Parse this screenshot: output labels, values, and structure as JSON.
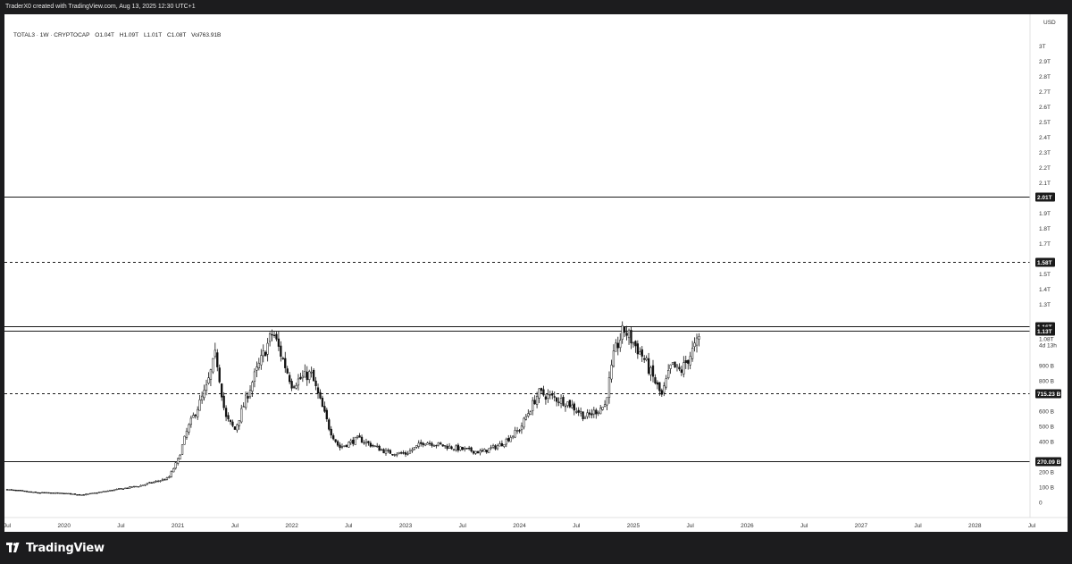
{
  "header": {
    "text": "TraderX0 created with TradingView.com, Aug 13, 2025 12:30 UTC+1"
  },
  "legend": {
    "symbol": "TOTAL3 · 1W · CRYPTOCAP",
    "open": "O1.04T",
    "high": "H1.09T",
    "low": "L1.01T",
    "close": "C1.08T",
    "volume": "Vol763.91B"
  },
  "price_axis": {
    "currency": "USD"
  },
  "footer": {
    "brand": "TradingView"
  },
  "chart_data": {
    "type": "candlestick",
    "symbol": "TOTAL3",
    "timeframe": "1W",
    "x_tick_labels": [
      "Jul",
      "2020",
      "Jul",
      "2021",
      "Jul",
      "2022",
      "Jul",
      "2023",
      "Jul",
      "2024",
      "Jul",
      "2025",
      "Jul",
      "2026",
      "Jul",
      "2027",
      "Jul",
      "2028",
      "Jul"
    ],
    "y_tick_labels": [
      "0",
      "100 B",
      "200 B",
      "400 B",
      "500 B",
      "600 B",
      "800 B",
      "900 B",
      "1.3T",
      "1.4T",
      "1.5T",
      "1.7T",
      "1.8T",
      "1.9T",
      "2.1T",
      "2.2T",
      "2.3T",
      "2.4T",
      "2.5T",
      "2.6T",
      "2.7T",
      "2.8T",
      "2.9T",
      "3T"
    ],
    "y_ticks_B": [
      0,
      100,
      200,
      400,
      500,
      600,
      800,
      900,
      1300,
      1400,
      1500,
      1700,
      1800,
      1900,
      2100,
      2200,
      2300,
      2400,
      2500,
      2600,
      2700,
      2800,
      2900,
      3000
    ],
    "ylim_B": [
      -40,
      3150
    ],
    "x_range": [
      "2019-07",
      "2028-07"
    ],
    "horizontal_levels": [
      {
        "value_B": 2010,
        "label": "2.01T",
        "style": "solid"
      },
      {
        "value_B": 1580,
        "label": "1.58T",
        "style": "dashed"
      },
      {
        "value_B": 1160,
        "label": "1.16T",
        "style": "solid"
      },
      {
        "value_B": 1130,
        "label": "1.13T",
        "style": "solid"
      },
      {
        "value_B": 715.23,
        "label": "715.23 B",
        "style": "dashed"
      },
      {
        "value_B": 270.09,
        "label": "270.09 B",
        "style": "solid"
      }
    ],
    "last_price": {
      "value_B": 1080,
      "label": "1.08T",
      "countdown": "4d 13h"
    },
    "weekly_close_path_B": [
      [
        "2019-07",
        85
      ],
      [
        "2019-10",
        65
      ],
      [
        "2020-01",
        60
      ],
      [
        "2020-03",
        50
      ],
      [
        "2020-06",
        80
      ],
      [
        "2020-09",
        110
      ],
      [
        "2020-12",
        160
      ],
      [
        "2021-01",
        280
      ],
      [
        "2021-02",
        480
      ],
      [
        "2021-04",
        750
      ],
      [
        "2021-05",
        980
      ],
      [
        "2021-06",
        560
      ],
      [
        "2021-07",
        480
      ],
      [
        "2021-09",
        820
      ],
      [
        "2021-11",
        1120
      ],
      [
        "2022-01",
        780
      ],
      [
        "2022-03",
        850
      ],
      [
        "2022-05",
        480
      ],
      [
        "2022-06",
        360
      ],
      [
        "2022-08",
        420
      ],
      [
        "2022-11",
        330
      ],
      [
        "2023-01",
        320
      ],
      [
        "2023-03",
        400
      ],
      [
        "2023-06",
        360
      ],
      [
        "2023-09",
        330
      ],
      [
        "2023-11",
        380
      ],
      [
        "2024-01",
        480
      ],
      [
        "2024-03",
        720
      ],
      [
        "2024-06",
        660
      ],
      [
        "2024-08",
        560
      ],
      [
        "2024-10",
        640
      ],
      [
        "2024-11",
        980
      ],
      [
        "2024-12",
        1140
      ],
      [
        "2025-02",
        960
      ],
      [
        "2025-04",
        700
      ],
      [
        "2025-05",
        900
      ],
      [
        "2025-06",
        860
      ],
      [
        "2025-08",
        1080
      ]
    ]
  }
}
